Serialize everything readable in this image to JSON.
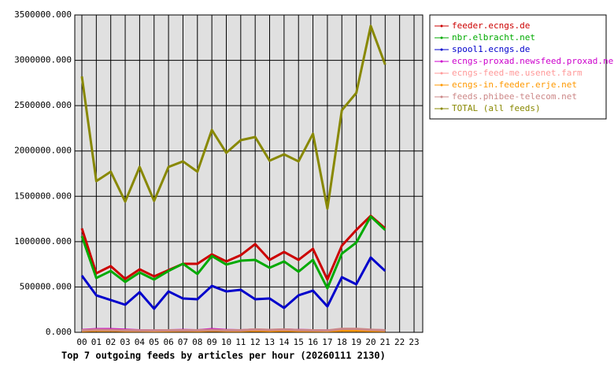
{
  "chart_data": {
    "type": "line",
    "title": "Top 7 outgoing feeds by articles per hour (20260111 2130)",
    "categories": [
      "00",
      "01",
      "02",
      "03",
      "04",
      "05",
      "06",
      "07",
      "08",
      "09",
      "10",
      "11",
      "12",
      "13",
      "14",
      "15",
      "16",
      "17",
      "18",
      "19",
      "20",
      "21",
      "22",
      "23"
    ],
    "ylim": [
      0,
      3500000
    ],
    "yticks": [
      {
        "value": 0,
        "label": "0.000"
      },
      {
        "value": 500000,
        "label": "500000.000"
      },
      {
        "value": 1000000,
        "label": "1000000.000"
      },
      {
        "value": 1500000,
        "label": "1500000.000"
      },
      {
        "value": 2000000,
        "label": "2000000.000"
      },
      {
        "value": 2500000,
        "label": "2500000.000"
      },
      {
        "value": 3000000,
        "label": "3000000.000"
      },
      {
        "value": 3500000,
        "label": "3500000.000"
      }
    ],
    "grid": true,
    "legend": "right",
    "series": [
      {
        "name": "feeder.ecngs.de",
        "color": "#cc0000",
        "values": [
          1146000,
          651000,
          730000,
          590000,
          695000,
          617000,
          686000,
          756000,
          756000,
          860000,
          782000,
          851000,
          973000,
          799000,
          886000,
          799000,
          921000,
          582000,
          955000,
          1129000,
          1285000,
          1146000,
          null,
          null
        ]
      },
      {
        "name": "nbr.elbracht.net",
        "color": "#00aa00",
        "values": [
          1060000,
          599000,
          677000,
          556000,
          660000,
          582000,
          677000,
          756000,
          643000,
          842000,
          747000,
          790000,
          799000,
          712000,
          782000,
          669000,
          799000,
          486000,
          868000,
          990000,
          1277000,
          1129000,
          null,
          null
        ]
      },
      {
        "name": "spool1.ecngs.de",
        "color": "#0000cc",
        "values": [
          625000,
          408000,
          356000,
          304000,
          443000,
          260000,
          451000,
          373000,
          365000,
          512000,
          451000,
          469000,
          365000,
          373000,
          269000,
          408000,
          460000,
          286000,
          608000,
          530000,
          825000,
          677000,
          null,
          null
        ]
      },
      {
        "name": "ecngs-proxad.newsfeed.proxad.net",
        "color": "#cc00cc",
        "values": [
          25000,
          35000,
          35000,
          28000,
          22000,
          20000,
          22000,
          25000,
          22000,
          35000,
          25000,
          22000,
          30000,
          22000,
          30000,
          25000,
          22000,
          20000,
          25000,
          28000,
          25000,
          22000,
          null,
          null
        ]
      },
      {
        "name": "ecngs-feed-me.usenet.farm",
        "color": "#ff9999",
        "values": [
          20000,
          25000,
          22000,
          20000,
          18000,
          18000,
          20000,
          20000,
          20000,
          22000,
          20000,
          20000,
          30000,
          25000,
          30000,
          22000,
          20000,
          18000,
          35000,
          35000,
          25000,
          20000,
          null,
          null
        ]
      },
      {
        "name": "ecngs-in.feeder.erje.net",
        "color": "#ff9900",
        "values": [
          15000,
          18000,
          18000,
          15000,
          15000,
          14000,
          15000,
          16000,
          15000,
          18000,
          15000,
          15000,
          18000,
          15000,
          18000,
          15000,
          15000,
          14000,
          18000,
          18000,
          16000,
          15000,
          null,
          null
        ]
      },
      {
        "name": "feeds.phibee-telecom.net",
        "color": "#cc8888",
        "values": [
          22000,
          28000,
          26000,
          22000,
          20000,
          20000,
          22000,
          22000,
          22000,
          26000,
          22000,
          22000,
          32000,
          26000,
          32000,
          24000,
          22000,
          20000,
          38000,
          38000,
          28000,
          22000,
          null,
          null
        ]
      },
      {
        "name": "TOTAL (all feeds)",
        "color": "#888800",
        "values": [
          2822000,
          1667000,
          1772000,
          1442000,
          1824000,
          1450000,
          1824000,
          1885000,
          1772000,
          2232000,
          1980000,
          2119000,
          2154000,
          1893000,
          1963000,
          1885000,
          2189000,
          1364000,
          2449000,
          2640000,
          3379000,
          2953000,
          null,
          null
        ]
      }
    ]
  }
}
